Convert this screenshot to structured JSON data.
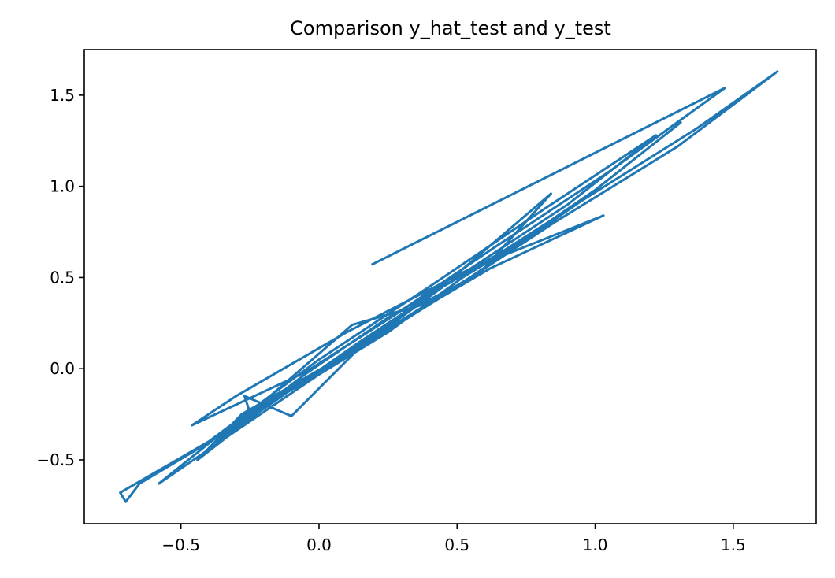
{
  "chart_data": {
    "type": "line",
    "title": "Comparison y_hat_test and y_test",
    "xlabel": "",
    "ylabel": "",
    "xlim": [
      -0.85,
      1.8
    ],
    "ylim": [
      -0.85,
      1.75
    ],
    "xticks": [
      -0.5,
      0.0,
      0.5,
      1.0,
      1.5
    ],
    "yticks": [
      -0.5,
      0.0,
      0.5,
      1.0,
      1.5
    ],
    "xtick_labels": [
      "−0.5",
      "0.0",
      "0.5",
      "1.0",
      "1.5"
    ],
    "ytick_labels": [
      "−0.5",
      "0.0",
      "0.5",
      "1.0",
      "1.5"
    ],
    "grid": false,
    "legend": false,
    "color": "#1f77b4",
    "series": [
      {
        "x": [
          0.19,
          1.47,
          1.05,
          0.62,
          0.28,
          -0.05,
          -0.46,
          -0.3,
          0.1,
          0.55,
          0.9,
          1.22,
          0.82,
          0.4,
          0.0,
          -0.4,
          -0.72,
          -0.7,
          -0.65,
          -0.45,
          -0.2,
          0.15,
          0.55,
          1.03,
          0.62,
          0.25,
          -0.1,
          -0.35,
          -0.58,
          -0.3,
          0.05,
          0.45,
          0.85,
          1.3,
          1.66,
          1.37,
          0.95,
          0.6,
          0.25,
          -0.1,
          -0.44,
          -0.28,
          0.1,
          0.5,
          0.84,
          0.58,
          0.3,
          0.0,
          -0.25,
          -0.27,
          -0.1,
          0.15,
          0.45,
          0.75,
          1.0,
          1.31,
          0.95,
          0.62,
          0.25,
          -0.05,
          -0.37,
          -0.2,
          0.12,
          0.42,
          0.79,
          0.52,
          0.25,
          -0.02,
          -0.3
        ],
        "y": [
          0.57,
          1.54,
          1.08,
          0.65,
          0.3,
          -0.02,
          -0.31,
          -0.15,
          0.2,
          0.55,
          0.9,
          1.28,
          0.88,
          0.45,
          0.05,
          -0.4,
          -0.68,
          -0.73,
          -0.63,
          -0.45,
          -0.22,
          0.15,
          0.55,
          0.84,
          0.55,
          0.22,
          -0.1,
          -0.35,
          -0.63,
          -0.34,
          0.02,
          0.4,
          0.8,
          1.22,
          1.63,
          1.32,
          0.92,
          0.55,
          0.22,
          -0.1,
          -0.5,
          -0.25,
          0.08,
          0.52,
          0.96,
          0.52,
          0.3,
          -0.02,
          -0.24,
          -0.15,
          -0.26,
          0.12,
          0.45,
          0.72,
          0.98,
          1.35,
          0.92,
          0.6,
          0.28,
          -0.03,
          -0.4,
          -0.18,
          0.24,
          0.37,
          0.75,
          0.5,
          0.2,
          -0.05,
          -0.28
        ]
      }
    ]
  }
}
